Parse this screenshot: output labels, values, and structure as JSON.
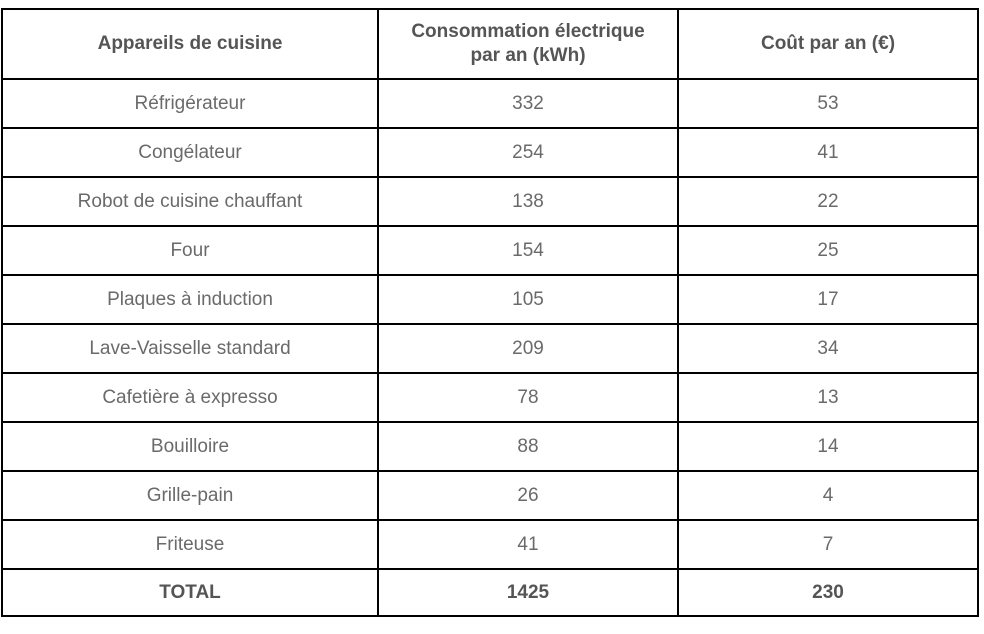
{
  "table": {
    "columns": [
      {
        "label": "Appareils de cuisine"
      },
      {
        "label": "Consommation électrique par an (kWh)",
        "line1": "Consommation électrique",
        "line2": "par an (kWh)"
      },
      {
        "label": "Coût par an (€)"
      }
    ],
    "rows": [
      {
        "appliance": "Réfrigérateur",
        "kwh": "332",
        "cost": "53"
      },
      {
        "appliance": "Congélateur",
        "kwh": "254",
        "cost": "41"
      },
      {
        "appliance": "Robot de cuisine chauffant",
        "kwh": "138",
        "cost": "22"
      },
      {
        "appliance": "Four",
        "kwh": "154",
        "cost": "25"
      },
      {
        "appliance": "Plaques à induction",
        "kwh": "105",
        "cost": "17"
      },
      {
        "appliance": "Lave-Vaisselle standard",
        "kwh": "209",
        "cost": "34"
      },
      {
        "appliance": "Cafetière à expresso",
        "kwh": "78",
        "cost": "13"
      },
      {
        "appliance": "Bouilloire",
        "kwh": "88",
        "cost": "14"
      },
      {
        "appliance": "Grille-pain",
        "kwh": "26",
        "cost": "4"
      },
      {
        "appliance": "Friteuse",
        "kwh": "41",
        "cost": "7"
      }
    ],
    "total_row": {
      "label": "TOTAL",
      "kwh": "1425",
      "cost": "230"
    },
    "colors": {
      "border": "#000000",
      "header_text": "#555555",
      "body_text": "#6a6a6a",
      "background": "#ffffff"
    }
  },
  "chart_data": {
    "type": "table",
    "title": "",
    "columns": [
      "Appareils de cuisine",
      "Consommation électrique par an (kWh)",
      "Coût par an (€)"
    ],
    "rows": [
      [
        "Réfrigérateur",
        332,
        53
      ],
      [
        "Congélateur",
        254,
        41
      ],
      [
        "Robot de cuisine chauffant",
        138,
        22
      ],
      [
        "Four",
        154,
        25
      ],
      [
        "Plaques à induction",
        105,
        17
      ],
      [
        "Lave-Vaisselle standard",
        209,
        34
      ],
      [
        "Cafetière à expresso",
        78,
        13
      ],
      [
        "Bouilloire",
        88,
        14
      ],
      [
        "Grille-pain",
        26,
        4
      ],
      [
        "Friteuse",
        41,
        7
      ]
    ],
    "total": [
      "TOTAL",
      1425,
      230
    ]
  }
}
